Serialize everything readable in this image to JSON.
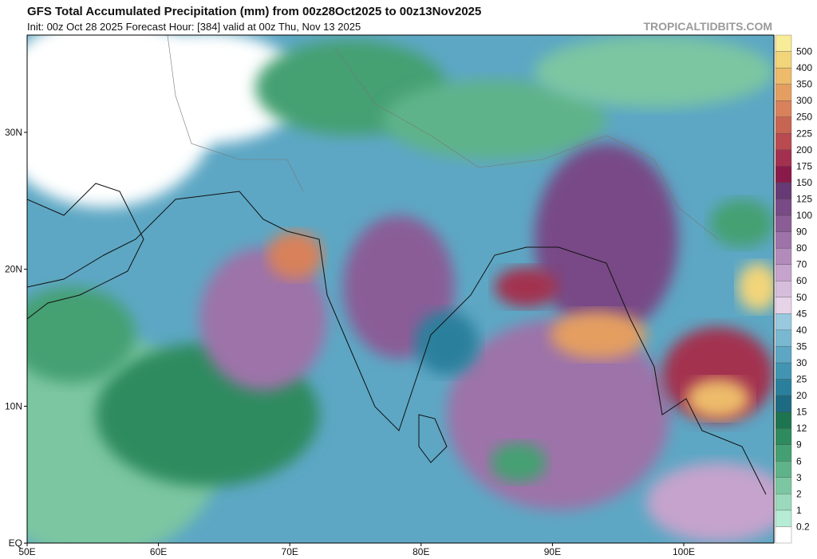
{
  "header": {
    "title": "GFS Total Accumulated Precipitation (mm) from 00z28Oct2025 to 00z13Nov2025",
    "subtitle": "Init: 00z Oct 28 2025   Forecast Hour: [384]   valid at 00z Thu, Nov 13 2025",
    "credit": "TROPICALTIDBITS.COM"
  },
  "map": {
    "lat_labels": [
      "30N",
      "20N",
      "10N",
      "EQ"
    ],
    "lon_labels": [
      "50E",
      "60E",
      "70E",
      "80E",
      "90E",
      "100E"
    ]
  },
  "colorbar": {
    "levels": [
      0.2,
      1,
      2,
      3,
      6,
      9,
      12,
      15,
      20,
      25,
      30,
      35,
      40,
      45,
      50,
      60,
      70,
      80,
      90,
      100,
      125,
      150,
      175,
      200,
      225,
      250,
      300,
      350,
      400,
      500
    ],
    "colors": [
      "#ffffff",
      "#b6ecd6",
      "#9ad9bb",
      "#7cc6a2",
      "#5fb38a",
      "#44a072",
      "#2d8b5e",
      "#1c7550",
      "#1c6b82",
      "#2a809c",
      "#4295b2",
      "#5da7c4",
      "#7ab8d2",
      "#98c9df",
      "#e6d3e8",
      "#d7bddc",
      "#c5a3cc",
      "#b28bbb",
      "#9d73a9",
      "#8a5d97",
      "#784a86",
      "#663a74",
      "#8a1a4a",
      "#a3304f",
      "#b84a50",
      "#c86452",
      "#d8815a",
      "#e49e60",
      "#edbb6a",
      "#f3d579",
      "#f8ec98"
    ]
  }
}
